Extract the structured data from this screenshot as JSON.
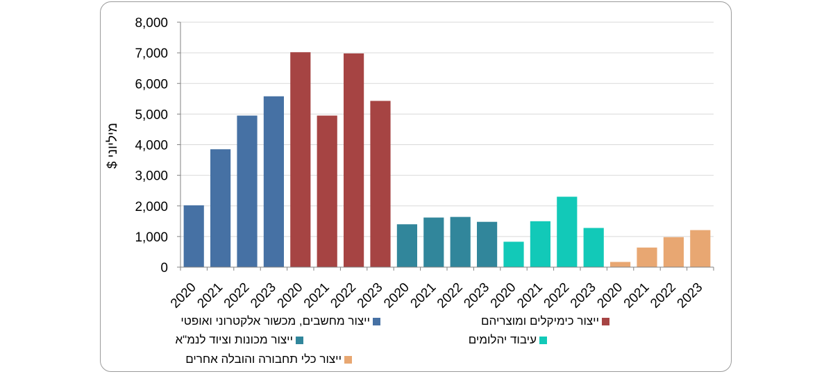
{
  "chart_data": {
    "type": "bar",
    "ylabel": "מיליוני $",
    "ylim": [
      0,
      8000
    ],
    "yticks": [
      0,
      1000,
      2000,
      3000,
      4000,
      5000,
      6000,
      7000,
      8000
    ],
    "ytick_labels": [
      "0",
      "1,000",
      "2,000",
      "3,000",
      "4,000",
      "5,000",
      "6,000",
      "7,000",
      "8,000"
    ],
    "grid": true,
    "legend_position": "bottom",
    "series": [
      {
        "name": "ייצור מחשבים, מכשור אלקטרוני ואופטי",
        "color": "#4671A4",
        "categories": [
          "2020",
          "2021",
          "2022",
          "2023"
        ],
        "values": [
          2020,
          3850,
          4950,
          5580
        ]
      },
      {
        "name": "ייצור כימיקלים ומוצריהם",
        "color": "#A64443",
        "categories": [
          "2020",
          "2021",
          "2022",
          "2023"
        ],
        "values": [
          7020,
          4950,
          6980,
          5430
        ]
      },
      {
        "name": "ייצור מכונות וציוד לנמ\"א",
        "color": "#31869B",
        "categories": [
          "2020",
          "2021",
          "2022",
          "2023"
        ],
        "values": [
          1400,
          1620,
          1640,
          1480
        ]
      },
      {
        "name": "עיבוד יהלומים",
        "color": "#12C9B8",
        "categories": [
          "2020",
          "2021",
          "2022",
          "2023"
        ],
        "values": [
          830,
          1500,
          2300,
          1280
        ]
      },
      {
        "name": "ייצור כלי תחבורה והובלה אחרים",
        "color": "#E8A772",
        "categories": [
          "2020",
          "2021",
          "2022",
          "2023"
        ],
        "values": [
          170,
          640,
          980,
          1210
        ]
      }
    ]
  }
}
